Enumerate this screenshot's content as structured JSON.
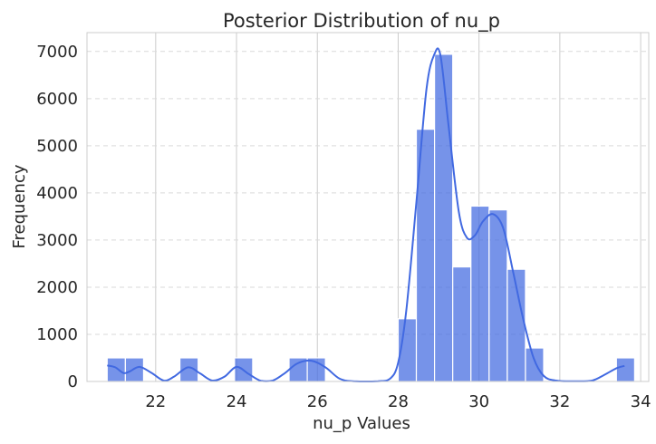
{
  "chart_data": {
    "type": "bar",
    "title": "Posterior Distribution of nu_p",
    "xlabel": "nu_p Values",
    "ylabel": "Frequency",
    "xlim": [
      20.3,
      34.2
    ],
    "ylim": [
      0,
      7400
    ],
    "x_ticks": [
      22,
      24,
      26,
      28,
      30,
      32,
      34
    ],
    "y_ticks": [
      0,
      1000,
      2000,
      3000,
      4000,
      5000,
      6000,
      7000
    ],
    "grid": {
      "x": "solid",
      "y": "dashed"
    },
    "bar_color": "#4169E1",
    "line_color": "#4169E1",
    "bins": [
      {
        "x0": 20.8,
        "x1": 21.25,
        "count": 500
      },
      {
        "x0": 21.25,
        "x1": 21.7,
        "count": 500
      },
      {
        "x0": 21.7,
        "x1": 22.15,
        "count": 0
      },
      {
        "x0": 22.15,
        "x1": 22.6,
        "count": 0
      },
      {
        "x0": 22.6,
        "x1": 23.05,
        "count": 500
      },
      {
        "x0": 23.05,
        "x1": 23.5,
        "count": 0
      },
      {
        "x0": 23.5,
        "x1": 23.95,
        "count": 0
      },
      {
        "x0": 23.95,
        "x1": 24.4,
        "count": 500
      },
      {
        "x0": 24.4,
        "x1": 24.85,
        "count": 0
      },
      {
        "x0": 24.85,
        "x1": 25.3,
        "count": 0
      },
      {
        "x0": 25.3,
        "x1": 25.75,
        "count": 500
      },
      {
        "x0": 25.75,
        "x1": 26.2,
        "count": 500
      },
      {
        "x0": 26.2,
        "x1": 26.65,
        "count": 0
      },
      {
        "x0": 26.65,
        "x1": 27.1,
        "count": 0
      },
      {
        "x0": 27.1,
        "x1": 27.55,
        "count": 0
      },
      {
        "x0": 27.55,
        "x1": 28.0,
        "count": 0
      },
      {
        "x0": 28.0,
        "x1": 28.45,
        "count": 1330
      },
      {
        "x0": 28.45,
        "x1": 28.9,
        "count": 5350
      },
      {
        "x0": 28.9,
        "x1": 29.35,
        "count": 6940
      },
      {
        "x0": 29.35,
        "x1": 29.8,
        "count": 2430
      },
      {
        "x0": 29.8,
        "x1": 30.25,
        "count": 3720
      },
      {
        "x0": 30.25,
        "x1": 30.7,
        "count": 3640
      },
      {
        "x0": 30.7,
        "x1": 31.15,
        "count": 2380
      },
      {
        "x0": 31.15,
        "x1": 31.6,
        "count": 710
      },
      {
        "x0": 31.6,
        "x1": 32.05,
        "count": 0
      },
      {
        "x0": 32.05,
        "x1": 32.5,
        "count": 0
      },
      {
        "x0": 32.5,
        "x1": 32.95,
        "count": 0
      },
      {
        "x0": 32.95,
        "x1": 33.4,
        "count": 0
      },
      {
        "x0": 33.4,
        "x1": 33.85,
        "count": 500
      }
    ],
    "kde": [
      {
        "x": 20.8,
        "y": 340
      },
      {
        "x": 21.0,
        "y": 300
      },
      {
        "x": 21.2,
        "y": 180
      },
      {
        "x": 21.35,
        "y": 210
      },
      {
        "x": 21.6,
        "y": 310
      },
      {
        "x": 21.9,
        "y": 180
      },
      {
        "x": 22.2,
        "y": 20
      },
      {
        "x": 22.45,
        "y": 100
      },
      {
        "x": 22.8,
        "y": 300
      },
      {
        "x": 23.1,
        "y": 170
      },
      {
        "x": 23.4,
        "y": 20
      },
      {
        "x": 23.7,
        "y": 100
      },
      {
        "x": 24.0,
        "y": 310
      },
      {
        "x": 24.3,
        "y": 160
      },
      {
        "x": 24.6,
        "y": 15
      },
      {
        "x": 24.9,
        "y": 20
      },
      {
        "x": 25.2,
        "y": 180
      },
      {
        "x": 25.5,
        "y": 380
      },
      {
        "x": 25.85,
        "y": 440
      },
      {
        "x": 26.2,
        "y": 300
      },
      {
        "x": 26.55,
        "y": 60
      },
      {
        "x": 26.9,
        "y": 5
      },
      {
        "x": 27.5,
        "y": 5
      },
      {
        "x": 27.8,
        "y": 60
      },
      {
        "x": 28.0,
        "y": 400
      },
      {
        "x": 28.2,
        "y": 1500
      },
      {
        "x": 28.45,
        "y": 3800
      },
      {
        "x": 28.7,
        "y": 6200
      },
      {
        "x": 28.9,
        "y": 6950
      },
      {
        "x": 29.05,
        "y": 6900
      },
      {
        "x": 29.25,
        "y": 5400
      },
      {
        "x": 29.5,
        "y": 3600
      },
      {
        "x": 29.7,
        "y": 3050
      },
      {
        "x": 29.9,
        "y": 3100
      },
      {
        "x": 30.1,
        "y": 3400
      },
      {
        "x": 30.35,
        "y": 3550
      },
      {
        "x": 30.6,
        "y": 3250
      },
      {
        "x": 30.85,
        "y": 2300
      },
      {
        "x": 31.1,
        "y": 1300
      },
      {
        "x": 31.35,
        "y": 500
      },
      {
        "x": 31.6,
        "y": 120
      },
      {
        "x": 31.9,
        "y": 20
      },
      {
        "x": 32.4,
        "y": 5
      },
      {
        "x": 32.8,
        "y": 20
      },
      {
        "x": 33.1,
        "y": 140
      },
      {
        "x": 33.4,
        "y": 280
      },
      {
        "x": 33.6,
        "y": 330
      }
    ]
  }
}
